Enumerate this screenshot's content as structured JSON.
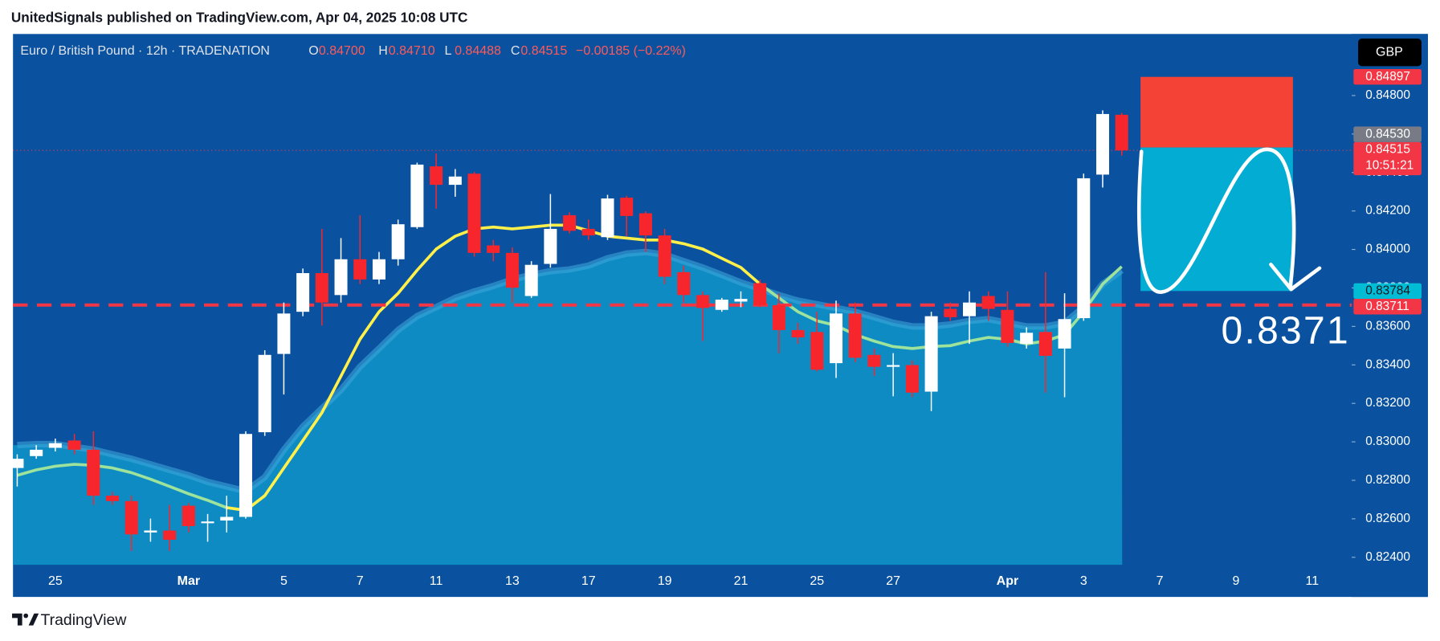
{
  "header": "UnitedSignals published on TradingView.com, Apr 04, 2025 10:08 UTC",
  "footer": "TradingView",
  "chart_data": {
    "type": "candlestick",
    "legend": {
      "symbol": "Euro / British Pound · 12h · TRADENATION",
      "ohlc": [
        [
          "O",
          "0.84700"
        ],
        [
          "H",
          "0.84710"
        ],
        [
          "L",
          "0.84488"
        ],
        [
          "C",
          "0.84515"
        ]
      ],
      "change": "−0.00185 (−0.22%)"
    },
    "currency": "GBP",
    "categories": [
      null,
      null,
      "25",
      null,
      null,
      null,
      null,
      null,
      null,
      "Mar",
      null,
      null,
      null,
      null,
      "5",
      null,
      null,
      null,
      "7",
      null,
      null,
      null,
      "11",
      null,
      null,
      null,
      "13",
      null,
      null,
      null,
      "17",
      null,
      null,
      null,
      "19",
      null,
      null,
      null,
      "21",
      null,
      null,
      null,
      "25",
      null,
      null,
      null,
      "27",
      null,
      null,
      null,
      null,
      null,
      "Apr",
      null,
      null,
      null,
      "3",
      null,
      null,
      null,
      "7",
      null,
      null,
      null,
      "9",
      null,
      null,
      null,
      "11",
      null,
      null
    ],
    "open": [
      0.82864,
      0.82926,
      0.82969,
      0.83007,
      0.82959,
      0.8272,
      0.82692,
      0.82529,
      0.82539,
      0.82668,
      0.82577,
      0.82591,
      0.8261,
      0.8305,
      0.83457,
      0.83676,
      0.83877,
      0.83763,
      0.83949,
      0.83844,
      0.83949,
      0.84116,
      0.84432,
      0.84336,
      0.84394,
      0.84021,
      0.83982,
      0.83758,
      0.83925,
      0.84178,
      0.84107,
      0.84064,
      0.84269,
      0.84188,
      0.84073,
      0.83882,
      0.83763,
      0.83686,
      0.83729,
      0.83825,
      0.8371,
      0.83581,
      0.83571,
      0.83409,
      0.83667,
      0.83452,
      0.8339,
      0.83399,
      0.83261,
      0.83691,
      0.83653,
      0.83758,
      0.83686,
      0.83509,
      0.83571,
      0.83485,
      0.83643,
      0.84389,
      0.847,
      null,
      null,
      null,
      null,
      null,
      null,
      null,
      null,
      null,
      null,
      null,
      null
    ],
    "high": [
      0.82935,
      0.82983,
      0.83017,
      0.83041,
      0.83055,
      0.82739,
      0.8272,
      0.82601,
      0.82672,
      0.82682,
      0.82625,
      0.8272,
      0.83055,
      0.83476,
      0.83724,
      0.83901,
      0.84107,
      0.84059,
      0.84178,
      0.83987,
      0.84155,
      0.84451,
      0.84499,
      0.84418,
      0.84403,
      0.84049,
      0.84011,
      0.83939,
      0.84288,
      0.84193,
      0.84155,
      0.84284,
      0.84279,
      0.84198,
      0.84107,
      0.83916,
      0.83782,
      0.83748,
      0.83782,
      0.83844,
      0.83772,
      0.83619,
      0.83676,
      0.83734,
      0.83724,
      0.83485,
      0.83461,
      0.83423,
      0.83676,
      0.83724,
      0.83782,
      0.83782,
      0.83782,
      0.83595,
      0.83882,
      0.83772,
      0.84394,
      0.84723,
      0.8471,
      null,
      null,
      null,
      null,
      null,
      null,
      null,
      null,
      null,
      null,
      null,
      null
    ],
    "low": [
      0.82768,
      0.82912,
      0.8295,
      0.82935,
      0.82672,
      0.82672,
      0.82433,
      0.82481,
      0.82433,
      0.82529,
      0.82481,
      0.82529,
      0.82601,
      0.83031,
      0.83246,
      0.83653,
      0.83605,
      0.83724,
      0.8382,
      0.8382,
      0.83916,
      0.84107,
      0.84212,
      0.84274,
      0.83963,
      0.83939,
      0.83724,
      0.83748,
      0.83906,
      0.84083,
      0.84049,
      0.84049,
      0.84069,
      0.83987,
      0.8382,
      0.83724,
      0.83524,
      0.83676,
      0.837,
      0.837,
      0.83461,
      0.83509,
      0.83366,
      0.83332,
      0.83414,
      0.83342,
      0.83237,
      0.83232,
      0.8316,
      0.83629,
      0.83509,
      0.83629,
      0.83495,
      0.83485,
      0.83256,
      0.83232,
      0.83629,
      0.84322,
      0.84488,
      null,
      null,
      null,
      null,
      null,
      null,
      null,
      null,
      null,
      null,
      null,
      null
    ],
    "close": [
      0.82912,
      0.82959,
      0.82993,
      0.82959,
      0.8272,
      0.82692,
      0.82519,
      0.82539,
      0.82491,
      0.82562,
      0.82586,
      0.8261,
      0.83041,
      0.83452,
      0.83667,
      0.83877,
      0.83724,
      0.83949,
      0.83844,
      0.83949,
      0.84131,
      0.84441,
      0.84336,
      0.84379,
      0.83982,
      0.83982,
      0.83801,
      0.8392,
      0.84107,
      0.84097,
      0.84073,
      0.84265,
      0.84174,
      0.84073,
      0.83858,
      0.83763,
      0.83696,
      0.83739,
      0.83743,
      0.8371,
      0.83581,
      0.83543,
      0.83375,
      0.83667,
      0.83437,
      0.8339,
      0.83399,
      0.83256,
      0.83653,
      0.83648,
      0.83724,
      0.83691,
      0.83514,
      0.83567,
      0.83447,
      0.83638,
      0.8437,
      0.84704,
      0.84515,
      null,
      null,
      null,
      null,
      null,
      null,
      null,
      null,
      null,
      null,
      null,
      null
    ],
    "up_color": "#ffffff",
    "down_color": "#f7262d",
    "area": {
      "color": "#0f8bc4",
      "values": [
        0.82983,
        0.82988,
        0.82988,
        0.82974,
        0.82959,
        0.82935,
        0.82912,
        0.82883,
        0.82854,
        0.82826,
        0.82792,
        0.82768,
        0.82744,
        0.82816,
        0.82959,
        0.83079,
        0.83174,
        0.8327,
        0.8339,
        0.83485,
        0.83581,
        0.83653,
        0.837,
        0.83748,
        0.83782,
        0.8381,
        0.83844,
        0.83868,
        0.83887,
        0.83896,
        0.83916,
        0.83954,
        0.83978,
        0.83987,
        0.83973,
        0.83939,
        0.83906,
        0.83868,
        0.83829,
        0.83796,
        0.83763,
        0.83734,
        0.83715,
        0.83696,
        0.83676,
        0.83648,
        0.83619,
        0.836,
        0.836,
        0.8361,
        0.83629,
        0.83638,
        0.83619,
        0.836,
        0.836,
        0.83619,
        0.837,
        0.8382,
        0.83892,
        null,
        null,
        null,
        null,
        null,
        null,
        null,
        null,
        null,
        null,
        null,
        null
      ]
    },
    "lines": [
      {
        "color": "#9ee39b",
        "values": [
          0.82826,
          0.82854,
          0.82873,
          0.82883,
          0.82878,
          0.82864,
          0.8284,
          0.82806,
          0.82768,
          0.8273,
          0.82696,
          0.82658,
          null,
          null,
          null,
          null,
          null,
          null,
          null,
          null,
          null,
          null,
          null,
          null,
          null,
          null,
          null,
          null,
          null,
          null,
          null,
          null,
          null,
          null,
          null,
          null,
          null,
          null,
          null,
          0.8382,
          0.83748,
          0.83676,
          0.83629,
          0.83605,
          0.83557,
          0.83524,
          0.83495,
          0.83485,
          0.83495,
          0.835,
          0.83524,
          0.83543,
          0.83533,
          0.83509,
          0.83524,
          0.83557,
          0.83676,
          0.8382,
          0.83911,
          null,
          null,
          null,
          null,
          null,
          null,
          null,
          null,
          null,
          null,
          null,
          null
        ]
      },
      {
        "color": "#fff04a",
        "values": [
          null,
          null,
          null,
          null,
          null,
          null,
          null,
          null,
          null,
          null,
          null,
          0.82658,
          0.82644,
          0.8272,
          0.82864,
          0.83007,
          0.83151,
          0.83342,
          0.83533,
          0.83676,
          0.83772,
          0.83892,
          0.84002,
          0.84069,
          0.84107,
          0.84116,
          0.84107,
          0.84116,
          0.84126,
          0.84126,
          0.84097,
          0.84069,
          0.84059,
          0.84049,
          0.84049,
          0.8403,
          0.84002,
          0.83954,
          0.83906,
          0.8382,
          null,
          null,
          null,
          null,
          null,
          null,
          null,
          null,
          null,
          null,
          null,
          null,
          null,
          null,
          null,
          null,
          null,
          null,
          null,
          null,
          null,
          null,
          null,
          null,
          null,
          null,
          null,
          null,
          null,
          null,
          null
        ]
      }
    ],
    "ylim": [
      0.82361,
      0.8512
    ],
    "yticks": [
      {
        "value": 0.824,
        "label": "0.82400"
      },
      {
        "value": 0.826,
        "label": "0.82600"
      },
      {
        "value": 0.828,
        "label": "0.82800"
      },
      {
        "value": 0.83,
        "label": "0.83000"
      },
      {
        "value": 0.832,
        "label": "0.83200"
      },
      {
        "value": 0.834,
        "label": "0.83400"
      },
      {
        "value": 0.836,
        "label": "0.83600"
      },
      {
        "value": 0.838,
        "label": "0.83800"
      },
      {
        "value": 0.84,
        "label": "0.84000"
      },
      {
        "value": 0.842,
        "label": "0.84200"
      },
      {
        "value": 0.844,
        "label": "0.84400"
      },
      {
        "value": 0.846,
        "label": "0.84600"
      },
      {
        "value": 0.848,
        "label": "0.84800"
      }
    ],
    "position": {
      "stop": 0.84897,
      "entry": 0.8453,
      "target": 0.83784,
      "stop_color": "#f44336",
      "target_color": "#02acd2"
    },
    "price_tags": [
      {
        "value": 0.84515,
        "label": "0.84515",
        "sub": "10:51:21",
        "color": "#f23645",
        "line": "dotted"
      },
      {
        "value": 0.84897,
        "label": "0.84897",
        "color": "#f23645"
      },
      {
        "value": 0.8453,
        "label": "0.84530",
        "color": "#787b86"
      },
      {
        "value": 0.83784,
        "label": "0.83784",
        "color": "#00bcd4",
        "text_color": "#131722"
      },
      {
        "value": 0.83711,
        "label": "0.83711",
        "color": "#f23645",
        "line": "dashed"
      }
    ],
    "annotation": "0.8371"
  }
}
